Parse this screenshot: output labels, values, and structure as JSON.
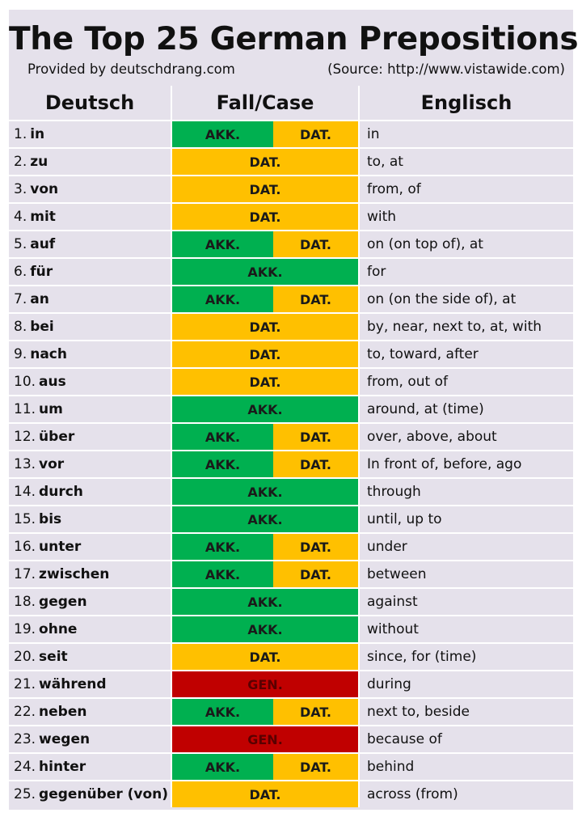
{
  "title": "The Top 25 German Prepositions",
  "credit_left": "Provided by deutschdrang.com",
  "credit_right": "(Source: http://www.vistawide.com)",
  "headers": {
    "deutsch": "Deutsch",
    "case": "Fall/Case",
    "englisch": "Englisch"
  },
  "case_colors": {
    "AKK.": "#00b050",
    "DAT.": "#ffc000",
    "GEN.": "#c00000"
  },
  "rows": [
    {
      "num": "1.",
      "word": "in",
      "cases": [
        "AKK.",
        "DAT."
      ],
      "english": "in"
    },
    {
      "num": "2.",
      "word": "zu",
      "cases": [
        "DAT."
      ],
      "english": "to, at"
    },
    {
      "num": "3.",
      "word": "von",
      "cases": [
        "DAT."
      ],
      "english": "from, of"
    },
    {
      "num": "4.",
      "word": "mit",
      "cases": [
        "DAT."
      ],
      "english": "with"
    },
    {
      "num": "5.",
      "word": "auf",
      "cases": [
        "AKK.",
        "DAT."
      ],
      "english": "on (on top of), at"
    },
    {
      "num": "6.",
      "word": "für",
      "cases": [
        "AKK."
      ],
      "english": "for"
    },
    {
      "num": "7.",
      "word": "an",
      "cases": [
        "AKK.",
        "DAT."
      ],
      "english": "on (on the side of), at"
    },
    {
      "num": "8.",
      "word": "bei",
      "cases": [
        "DAT."
      ],
      "english": "by, near, next to, at, with"
    },
    {
      "num": "9.",
      "word": "nach",
      "cases": [
        "DAT."
      ],
      "english": "to, toward, after"
    },
    {
      "num": "10.",
      "word": "aus",
      "cases": [
        "DAT."
      ],
      "english": "from, out of"
    },
    {
      "num": "11.",
      "word": "um",
      "cases": [
        "AKK."
      ],
      "english": "around, at (time)"
    },
    {
      "num": "12.",
      "word": "über",
      "cases": [
        "AKK.",
        "DAT."
      ],
      "english": "over, above, about"
    },
    {
      "num": "13.",
      "word": "vor",
      "cases": [
        "AKK.",
        "DAT."
      ],
      "english": "In front of, before, ago"
    },
    {
      "num": "14.",
      "word": "durch",
      "cases": [
        "AKK."
      ],
      "english": "through"
    },
    {
      "num": "15.",
      "word": "bis",
      "cases": [
        "AKK."
      ],
      "english": "until, up to"
    },
    {
      "num": "16.",
      "word": "unter",
      "cases": [
        "AKK.",
        "DAT."
      ],
      "english": "under"
    },
    {
      "num": "17.",
      "word": "zwischen",
      "cases": [
        "AKK.",
        "DAT."
      ],
      "english": "between"
    },
    {
      "num": "18.",
      "word": "gegen",
      "cases": [
        "AKK."
      ],
      "english": "against"
    },
    {
      "num": "19.",
      "word": "ohne",
      "cases": [
        "AKK."
      ],
      "english": "without"
    },
    {
      "num": "20.",
      "word": "seit",
      "cases": [
        "DAT."
      ],
      "english": "since, for (time)"
    },
    {
      "num": "21.",
      "word": "während",
      "cases": [
        "GEN."
      ],
      "english": "during"
    },
    {
      "num": "22.",
      "word": "neben",
      "cases": [
        "AKK.",
        "DAT."
      ],
      "english": "next to, beside"
    },
    {
      "num": "23.",
      "word": "wegen",
      "cases": [
        "GEN."
      ],
      "english": "because  of"
    },
    {
      "num": "24.",
      "word": "hinter",
      "cases": [
        "AKK.",
        "DAT."
      ],
      "english": "behind"
    },
    {
      "num": "25.",
      "word": "gegenüber (von)",
      "cases": [
        "DAT."
      ],
      "english": "across  (from)"
    }
  ]
}
